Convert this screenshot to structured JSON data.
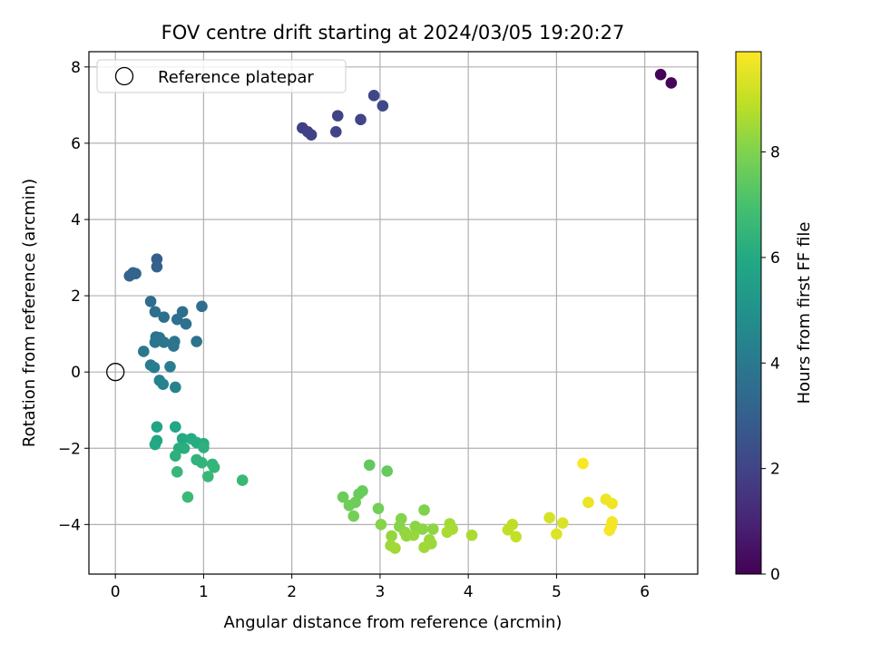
{
  "chart_data": {
    "type": "scatter",
    "title": "FOV centre drift starting at 2024/03/05 19:20:27",
    "xlabel": "Angular distance from reference (arcmin)",
    "ylabel": "Rotation from reference (arcmin)",
    "xlim": [
      -0.3,
      6.6
    ],
    "ylim": [
      -5.3,
      8.4
    ],
    "xticks": [
      0,
      1,
      2,
      3,
      4,
      5,
      6
    ],
    "yticks": [
      -4,
      -2,
      0,
      2,
      4,
      6,
      8
    ],
    "grid": true,
    "legend": {
      "placement": "upper-left",
      "entries": [
        "Reference platepar"
      ]
    },
    "reference_point": {
      "x": 0,
      "y": 0,
      "label": "Reference platepar"
    },
    "colorbar": {
      "label": "Hours from first FF file",
      "min": 0,
      "max": 9.9,
      "ticks": [
        0,
        2,
        4,
        6,
        8
      ],
      "colormap": "viridis"
    },
    "points": [
      {
        "x": 6.18,
        "y": 7.8,
        "c": 0.05
      },
      {
        "x": 6.3,
        "y": 7.58,
        "c": 0.15
      },
      {
        "x": 2.12,
        "y": 6.4,
        "c": 1.8
      },
      {
        "x": 2.18,
        "y": 6.3,
        "c": 1.85
      },
      {
        "x": 2.22,
        "y": 6.22,
        "c": 1.9
      },
      {
        "x": 2.52,
        "y": 6.72,
        "c": 1.95
      },
      {
        "x": 2.5,
        "y": 6.3,
        "c": 2.0
      },
      {
        "x": 2.78,
        "y": 6.62,
        "c": 2.05
      },
      {
        "x": 2.93,
        "y": 7.25,
        "c": 2.1
      },
      {
        "x": 3.03,
        "y": 6.98,
        "c": 2.15
      },
      {
        "x": 0.47,
        "y": 2.96,
        "c": 3.0
      },
      {
        "x": 0.47,
        "y": 2.76,
        "c": 3.05
      },
      {
        "x": 0.16,
        "y": 2.52,
        "c": 3.1
      },
      {
        "x": 0.2,
        "y": 2.6,
        "c": 3.15
      },
      {
        "x": 0.23,
        "y": 2.58,
        "c": 3.2
      },
      {
        "x": 0.4,
        "y": 1.85,
        "c": 3.5
      },
      {
        "x": 0.98,
        "y": 1.72,
        "c": 3.55
      },
      {
        "x": 0.76,
        "y": 1.58,
        "c": 3.6
      },
      {
        "x": 0.45,
        "y": 1.58,
        "c": 3.6
      },
      {
        "x": 0.55,
        "y": 1.44,
        "c": 3.65
      },
      {
        "x": 0.7,
        "y": 1.38,
        "c": 3.7
      },
      {
        "x": 0.8,
        "y": 1.26,
        "c": 3.7
      },
      {
        "x": 0.46,
        "y": 0.92,
        "c": 3.75
      },
      {
        "x": 0.5,
        "y": 0.9,
        "c": 3.8
      },
      {
        "x": 0.55,
        "y": 0.78,
        "c": 3.85
      },
      {
        "x": 0.45,
        "y": 0.78,
        "c": 3.85
      },
      {
        "x": 0.67,
        "y": 0.8,
        "c": 3.9
      },
      {
        "x": 0.66,
        "y": 0.68,
        "c": 3.9
      },
      {
        "x": 0.92,
        "y": 0.8,
        "c": 3.8
      },
      {
        "x": 0.32,
        "y": 0.54,
        "c": 4.0
      },
      {
        "x": 0.4,
        "y": 0.18,
        "c": 4.1
      },
      {
        "x": 0.44,
        "y": 0.12,
        "c": 4.15
      },
      {
        "x": 0.62,
        "y": 0.14,
        "c": 4.2
      },
      {
        "x": 0.5,
        "y": -0.22,
        "c": 4.3
      },
      {
        "x": 0.54,
        "y": -0.32,
        "c": 4.35
      },
      {
        "x": 0.68,
        "y": -0.4,
        "c": 4.4
      },
      {
        "x": 0.47,
        "y": -1.44,
        "c": 5.8
      },
      {
        "x": 0.68,
        "y": -1.44,
        "c": 5.85
      },
      {
        "x": 0.47,
        "y": -1.8,
        "c": 5.9
      },
      {
        "x": 0.45,
        "y": -1.9,
        "c": 5.95
      },
      {
        "x": 0.76,
        "y": -1.75,
        "c": 6.0
      },
      {
        "x": 0.86,
        "y": -1.75,
        "c": 6.05
      },
      {
        "x": 0.92,
        "y": -1.85,
        "c": 6.1
      },
      {
        "x": 1.0,
        "y": -1.88,
        "c": 6.1
      },
      {
        "x": 0.72,
        "y": -2.0,
        "c": 6.15
      },
      {
        "x": 0.78,
        "y": -2.0,
        "c": 6.2
      },
      {
        "x": 1.0,
        "y": -1.98,
        "c": 6.25
      },
      {
        "x": 0.68,
        "y": -2.2,
        "c": 6.3
      },
      {
        "x": 0.92,
        "y": -2.3,
        "c": 6.35
      },
      {
        "x": 0.98,
        "y": -2.38,
        "c": 6.4
      },
      {
        "x": 1.1,
        "y": -2.42,
        "c": 6.45
      },
      {
        "x": 1.12,
        "y": -2.5,
        "c": 6.5
      },
      {
        "x": 0.7,
        "y": -2.62,
        "c": 6.55
      },
      {
        "x": 1.05,
        "y": -2.74,
        "c": 6.6
      },
      {
        "x": 1.44,
        "y": -2.84,
        "c": 6.6
      },
      {
        "x": 0.82,
        "y": -3.28,
        "c": 6.7
      },
      {
        "x": 2.88,
        "y": -2.44,
        "c": 7.5
      },
      {
        "x": 3.08,
        "y": -2.6,
        "c": 7.55
      },
      {
        "x": 2.8,
        "y": -3.12,
        "c": 7.6
      },
      {
        "x": 2.76,
        "y": -3.2,
        "c": 7.6
      },
      {
        "x": 2.58,
        "y": -3.28,
        "c": 7.65
      },
      {
        "x": 2.72,
        "y": -3.42,
        "c": 7.7
      },
      {
        "x": 2.65,
        "y": -3.5,
        "c": 7.7
      },
      {
        "x": 2.98,
        "y": -3.58,
        "c": 7.75
      },
      {
        "x": 2.7,
        "y": -3.78,
        "c": 7.8
      },
      {
        "x": 3.5,
        "y": -3.62,
        "c": 8.0
      },
      {
        "x": 3.24,
        "y": -3.85,
        "c": 8.05
      },
      {
        "x": 3.01,
        "y": -4.0,
        "c": 8.1
      },
      {
        "x": 3.22,
        "y": -4.05,
        "c": 8.1
      },
      {
        "x": 3.4,
        "y": -4.05,
        "c": 8.15
      },
      {
        "x": 3.48,
        "y": -4.12,
        "c": 8.2
      },
      {
        "x": 3.6,
        "y": -4.12,
        "c": 8.2
      },
      {
        "x": 3.28,
        "y": -4.2,
        "c": 8.25
      },
      {
        "x": 3.13,
        "y": -4.3,
        "c": 8.3
      },
      {
        "x": 3.3,
        "y": -4.3,
        "c": 8.3
      },
      {
        "x": 3.38,
        "y": -4.28,
        "c": 8.35
      },
      {
        "x": 3.56,
        "y": -4.4,
        "c": 8.4
      },
      {
        "x": 3.58,
        "y": -4.5,
        "c": 8.4
      },
      {
        "x": 3.12,
        "y": -4.55,
        "c": 8.45
      },
      {
        "x": 3.17,
        "y": -4.62,
        "c": 8.5
      },
      {
        "x": 3.5,
        "y": -4.6,
        "c": 8.5
      },
      {
        "x": 3.79,
        "y": -3.98,
        "c": 8.55
      },
      {
        "x": 3.82,
        "y": -4.12,
        "c": 8.6
      },
      {
        "x": 3.76,
        "y": -4.2,
        "c": 8.6
      },
      {
        "x": 4.04,
        "y": -4.28,
        "c": 8.65
      },
      {
        "x": 4.5,
        "y": -4.0,
        "c": 8.9
      },
      {
        "x": 4.45,
        "y": -4.14,
        "c": 8.95
      },
      {
        "x": 4.54,
        "y": -4.32,
        "c": 9.0
      },
      {
        "x": 5.3,
        "y": -2.4,
        "c": 9.85
      },
      {
        "x": 4.92,
        "y": -3.82,
        "c": 9.3
      },
      {
        "x": 5.07,
        "y": -3.96,
        "c": 9.35
      },
      {
        "x": 5.0,
        "y": -4.25,
        "c": 9.4
      },
      {
        "x": 5.36,
        "y": -3.42,
        "c": 9.6
      },
      {
        "x": 5.56,
        "y": -3.34,
        "c": 9.65
      },
      {
        "x": 5.63,
        "y": -3.45,
        "c": 9.7
      },
      {
        "x": 5.63,
        "y": -3.93,
        "c": 9.75
      },
      {
        "x": 5.62,
        "y": -4.05,
        "c": 9.75
      },
      {
        "x": 5.6,
        "y": -4.15,
        "c": 9.8
      }
    ]
  }
}
